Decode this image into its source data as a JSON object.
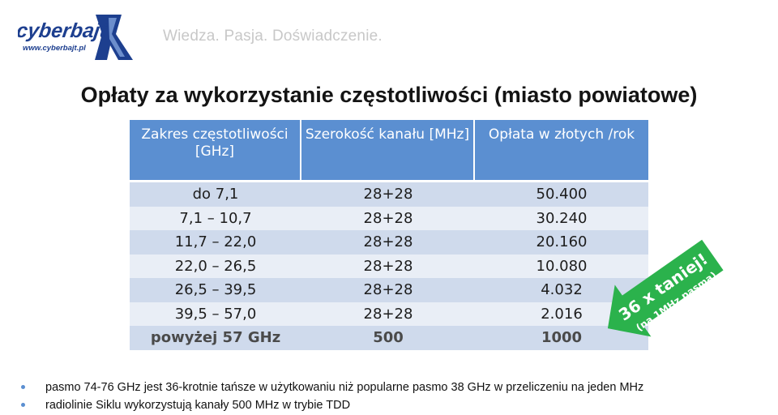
{
  "logo": {
    "brand": "cyberbajt",
    "url": "www.cyberbajt.pl"
  },
  "tagline": "Wiedza.  Pasja.  Doświadczenie.",
  "title": "Opłaty za wykorzystanie częstotliwości (miasto powiatowe)",
  "table": {
    "headers": [
      "Zakres częstotliwości [GHz]",
      "Szerokość kanału [MHz]",
      "Opłata w złotych /rok"
    ],
    "rows": [
      [
        "do 7,1",
        "28+28",
        "50.400"
      ],
      [
        "7,1 – 10,7",
        "28+28",
        "30.240"
      ],
      [
        "11,7 – 22,0",
        "28+28",
        "20.160"
      ],
      [
        "22,0 – 26,5",
        "28+28",
        "10.080"
      ],
      [
        "26,5 – 39,5",
        "28+28",
        "4.032"
      ],
      [
        "39,5 – 57,0",
        "28+28",
        "2.016"
      ],
      [
        "powyżej 57 GHz",
        "500",
        "1000"
      ]
    ]
  },
  "promo": {
    "line1": "36 x taniej!",
    "line2": "(na 1MHz pasma)",
    "color": "#2bb24c"
  },
  "bullets": [
    "pasmo 74-76 GHz jest 36-krotnie tańsze w użytkowaniu niż popularne pasmo 38 GHz w przeliczeniu na jeden MHz",
    "radiolinie Siklu wykorzystują kanały 500 MHz w trybie TDD"
  ]
}
